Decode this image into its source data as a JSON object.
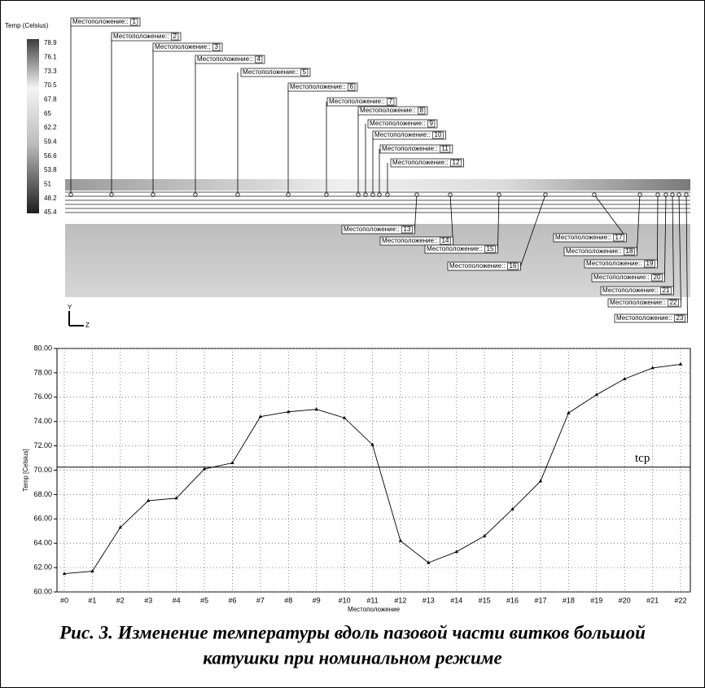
{
  "legend": {
    "title": "Temp (Celsius)",
    "ticks": [
      78.9,
      76.1,
      73.3,
      70.5,
      67.8,
      65,
      62.2,
      59.4,
      56.6,
      53.8,
      51,
      48.2,
      45.4
    ]
  },
  "probes": [
    {
      "label": "Местоположение::",
      "number": 1
    },
    {
      "label": "Местоположение::",
      "number": 2
    },
    {
      "label": "Местоположение::",
      "number": 3
    },
    {
      "label": "Местоположение::",
      "number": 4
    },
    {
      "label": "Местоположение::",
      "number": 5
    },
    {
      "label": "Местоположение::",
      "number": 6
    },
    {
      "label": "Местоположение::",
      "number": 7
    },
    {
      "label": "Местоположение::",
      "number": 8
    },
    {
      "label": "Местоположение::",
      "number": 9
    },
    {
      "label": "Местоположение::",
      "number": 10
    },
    {
      "label": "Местоположение::",
      "number": 11
    },
    {
      "label": "Местоположение::",
      "number": 12
    },
    {
      "label": "Местоположение::",
      "number": 13
    },
    {
      "label": "Местоположение::",
      "number": 14
    },
    {
      "label": "Местоположение::",
      "number": 15
    },
    {
      "label": "Местоположение::",
      "number": 16
    },
    {
      "label": "Местоположение::",
      "number": 17
    },
    {
      "label": "Местоположение::",
      "number": 18
    },
    {
      "label": "Местоположение::",
      "number": 19
    },
    {
      "label": "Местоположение::",
      "number": 20
    },
    {
      "label": "Местоположение::",
      "number": 21
    },
    {
      "label": "Местоположение::",
      "number": 22
    },
    {
      "label": "Местоположение::",
      "number": 23
    }
  ],
  "triad": {
    "y": "Y",
    "z": "Z"
  },
  "chart_data": {
    "type": "line",
    "xlabel": "Местоположение",
    "ylabel": "Temp [Celsius]",
    "categories": [
      "#0",
      "#1",
      "#2",
      "#3",
      "#4",
      "#5",
      "#6",
      "#7",
      "#8",
      "#9",
      "#10",
      "#11",
      "#12",
      "#13",
      "#14",
      "#15",
      "#16",
      "#17",
      "#18",
      "#19",
      "#20",
      "#21",
      "#22"
    ],
    "values": [
      61.5,
      61.7,
      65.3,
      67.5,
      67.7,
      70.1,
      70.6,
      74.4,
      74.8,
      75.0,
      74.3,
      72.1,
      64.2,
      62.4,
      63.3,
      64.6,
      66.8,
      69.1,
      74.7,
      76.2,
      77.5,
      78.4,
      78.7
    ],
    "color": "#000000",
    "ylim": [
      60,
      80
    ],
    "yticks": [
      {
        "value": 60,
        "label": "60.00"
      },
      {
        "value": 62,
        "label": "62.00"
      },
      {
        "value": 64,
        "label": "64.00"
      },
      {
        "value": 66,
        "label": "66.00"
      },
      {
        "value": 68,
        "label": "68.00"
      },
      {
        "value": 70,
        "label": "70.00"
      },
      {
        "value": 72,
        "label": "72.00"
      },
      {
        "value": 74,
        "label": "74.00"
      },
      {
        "value": 76,
        "label": "76.00"
      },
      {
        "value": 78,
        "label": "78.00"
      },
      {
        "value": 80,
        "label": "80.00"
      }
    ],
    "grid": true,
    "reference_line": {
      "value": 70.25,
      "label": "tср"
    }
  },
  "caption": [
    "Рис. 3. Изменение температуры вдоль пазовой части витков большой",
    "катушки при номинальном режиме"
  ]
}
